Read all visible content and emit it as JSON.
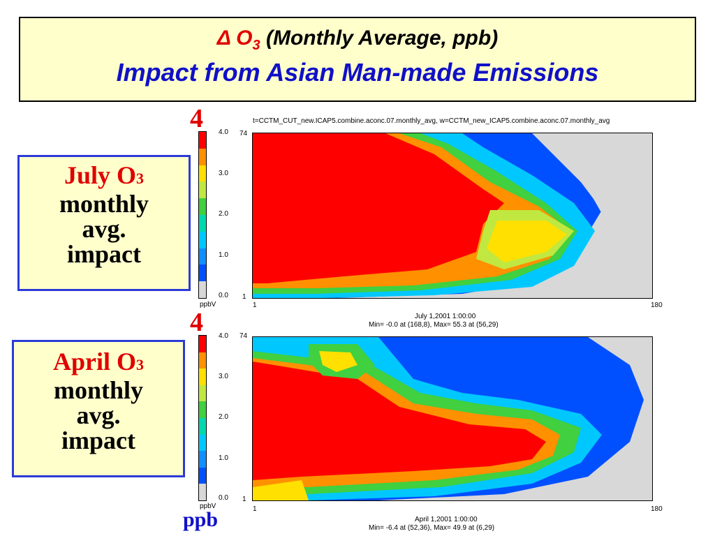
{
  "title": {
    "delta": "Δ",
    "o3_main": "O",
    "o3_sub": "3",
    "rest": "(Monthly Average, ppb)",
    "line2": "Impact  from Asian Man-made Emissions"
  },
  "panel_july": {
    "side": {
      "highlight": "July O",
      "highlight_sub": "3",
      "line2": "monthly",
      "line3": "avg.",
      "line4": "impact"
    },
    "scale_max": "4",
    "header": "t=CCTM_CUT_new.ICAP5.combine.aconc.07.monthly_avg, w=CCTM_new_ICAP5.combine.aconc.07.monthly_avg",
    "date": "July 1,2001 1:00:00",
    "minmax": "Min=   -0.0 at (168,8), Max=    55.3 at (56,29)",
    "colorbar_ticks": [
      "4.0",
      "3.0",
      "2.0",
      "1.0",
      "0.0"
    ],
    "unit": "ppbV",
    "y_top": "74",
    "y_bottom": "1",
    "x_left": "1",
    "x_right": "180"
  },
  "panel_april": {
    "side": {
      "highlight": "April O",
      "highlight_sub": "3",
      "line2": "monthly",
      "line3": "avg.",
      "line4": "impact"
    },
    "scale_max": "4",
    "date": "April 1,2001 1:00:00",
    "minmax": "Min=    -6.4 at (52,36), Max=    49.9 at (6,29)",
    "colorbar_ticks": [
      "4.0",
      "3.0",
      "2.0",
      "1.0",
      "0.0"
    ],
    "unit": "ppbV",
    "y_top": "74",
    "y_bottom": "1",
    "x_left": "1",
    "x_right": "180"
  },
  "ppb_label": "ppb",
  "colors": {
    "scale": [
      "#d8d8d8",
      "#0050ff",
      "#1090ff",
      "#00c8ff",
      "#00d8b0",
      "#40d040",
      "#c0e840",
      "#ffe000",
      "#ff9000",
      "#ff0000"
    ],
    "title_red": "#e00000",
    "title_blue": "#1010c8",
    "box_bg": "#ffffcc"
  }
}
